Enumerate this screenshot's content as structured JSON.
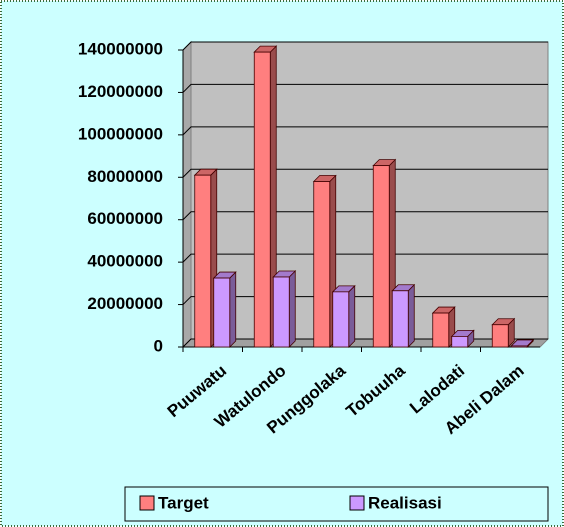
{
  "chart_data": {
    "type": "bar3d",
    "categories": [
      "Puuwatu",
      "Watulondo",
      "Punggolaka",
      "Tobuuha",
      "Lalodati",
      "Abeli Dalam"
    ],
    "series": [
      {
        "name": "Target",
        "color": "#ff7f7f",
        "values": [
          81000000,
          139000000,
          78000000,
          85500000,
          16000000,
          10500000
        ]
      },
      {
        "name": "Realisasi",
        "color": "#cc99ff",
        "values": [
          32500000,
          33000000,
          26000000,
          26500000,
          5000000,
          500000
        ]
      }
    ],
    "ylim": [
      0,
      140000000
    ],
    "yticks": [
      0,
      20000000,
      40000000,
      60000000,
      80000000,
      100000000,
      120000000,
      140000000
    ],
    "grid": true,
    "legend": "bottom"
  }
}
